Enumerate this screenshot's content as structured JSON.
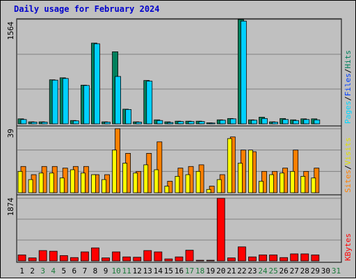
{
  "chart_data": {
    "type": "bar",
    "title": "Daily usage for February 2024",
    "colors": {
      "hits": "#00805c",
      "files": "#00c0ff",
      "pages": "#00e0ff",
      "visits": "#ffff00",
      "sites": "#ff8000",
      "kbytes": "#ff0000",
      "separator": "#808080",
      "weekend": "#00805c"
    },
    "days": [
      "1",
      "2",
      "3",
      "4",
      "5",
      "6",
      "7",
      "8",
      "9",
      "10",
      "11",
      "12",
      "13",
      "14",
      "15",
      "16",
      "17",
      "18",
      "19",
      "20",
      "21",
      "22",
      "23",
      "24",
      "25",
      "26",
      "27",
      "28",
      "29",
      "30",
      "31"
    ],
    "weekend_days": [
      3,
      4,
      10,
      11,
      17,
      18,
      24,
      25,
      31
    ],
    "panels": [
      {
        "name": "pages-files-hits",
        "ymax": 1564,
        "ymax_label": "1564",
        "legend": [
          {
            "text": "Pages",
            "color": "#00d8ff"
          },
          {
            "text": "/",
            "color": "#000000"
          },
          {
            "text": "Files",
            "color": "#0040ff"
          },
          {
            "text": "/",
            "color": "#000000"
          },
          {
            "text": "Hits",
            "color": "#00805c"
          }
        ],
        "series": [
          {
            "name": "Hits",
            "color": "#00805c",
            "values": [
              75,
              30,
              30,
              660,
              690,
              50,
              580,
              1210,
              30,
              1080,
              220,
              30,
              650,
              60,
              30,
              40,
              40,
              40,
              15,
              60,
              80,
              1564,
              60,
              100,
              30,
              80,
              60,
              75,
              75,
              null,
              null
            ]
          },
          {
            "name": "Files",
            "color": "#00d0ff",
            "values": [
              65,
              25,
              25,
              655,
              680,
              45,
              575,
              1200,
              25,
              710,
              215,
              25,
              640,
              50,
              20,
              35,
              35,
              35,
              12,
              55,
              75,
              1540,
              55,
              80,
              25,
              65,
              50,
              65,
              60,
              null,
              null
            ]
          },
          {
            "name": "Pages",
            "color": "#00e0ff",
            "values": [
              0,
              0,
              0,
              0,
              0,
              0,
              0,
              0,
              0,
              0,
              0,
              0,
              0,
              0,
              0,
              0,
              0,
              0,
              0,
              0,
              0,
              0,
              0,
              0,
              0,
              0,
              0,
              0,
              0,
              null,
              null
            ]
          }
        ]
      },
      {
        "name": "sites-visits",
        "ymax": 39,
        "ymax_label": "39",
        "legend": [
          {
            "text": "Sites",
            "color": "#ff8000"
          },
          {
            "text": "/",
            "color": "#000000"
          },
          {
            "text": "Visits",
            "color": "#e0e000"
          }
        ],
        "series": [
          {
            "name": "Visits",
            "color": "#ffff00",
            "values": [
              13,
              8,
              12,
              12,
              9,
              14,
              12,
              11,
              8,
              26,
              18,
              12,
              17,
              14,
              4,
              10,
              11,
              13,
              2,
              8,
              33,
              18,
              26,
              7,
              11,
              12,
              13,
              10,
              9,
              null,
              null
            ]
          },
          {
            "name": "Sites",
            "color": "#ff8000",
            "values": [
              16,
              11,
              16,
              16,
              15,
              16,
              16,
              11,
              11,
              39,
              24,
              13,
              24,
              31,
              7,
              15,
              16,
              17,
              4,
              11,
              34,
              26,
              25,
              13,
              13,
              15,
              26,
              13,
              15,
              null,
              null
            ]
          }
        ]
      },
      {
        "name": "kbytes",
        "ymax": 1874,
        "ymax_label": "1874",
        "legend": [
          {
            "text": "KBytes",
            "color": "#ff0000"
          }
        ],
        "series": [
          {
            "name": "KBytes",
            "color": "#ff0000",
            "values": [
              180,
              90,
              310,
              290,
              160,
              100,
              270,
              390,
              90,
              270,
              120,
              110,
              310,
              270,
              60,
              120,
              320,
              20,
              20,
              1874,
              90,
              420,
              120,
              180,
              180,
              100,
              210,
              210,
              180,
              null,
              null
            ]
          }
        ]
      }
    ]
  }
}
